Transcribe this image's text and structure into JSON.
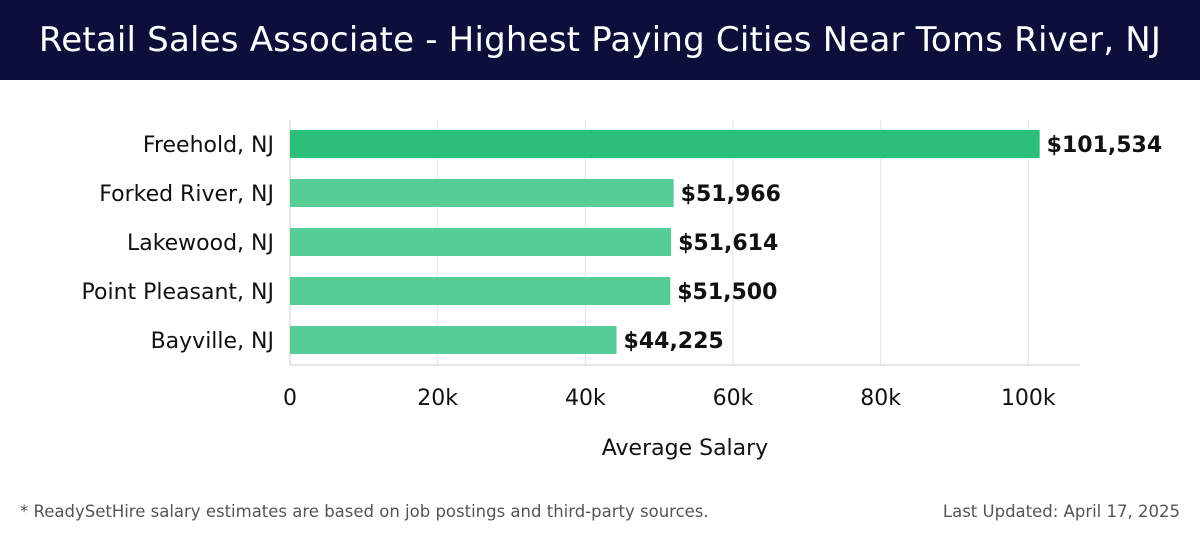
{
  "header": {
    "title": "Retail Sales Associate - Highest Paying Cities Near Toms River, NJ"
  },
  "footer": {
    "note": "* ReadySetHire salary estimates are based on job postings and third-party sources.",
    "updated": "Last Updated: April 17, 2025"
  },
  "chart_data": {
    "type": "bar",
    "orientation": "horizontal",
    "title": "Retail Sales Associate - Highest Paying Cities Near Toms River, NJ",
    "xlabel": "Average Salary",
    "ylabel": "",
    "categories": [
      "Freehold, NJ",
      "Forked River, NJ",
      "Lakewood, NJ",
      "Point Pleasant, NJ",
      "Bayville, NJ"
    ],
    "values": [
      101534,
      51966,
      51614,
      51500,
      44225
    ],
    "value_labels": [
      "$101,534",
      "$51,966",
      "$51,614",
      "$51,500",
      "$44,225"
    ],
    "xlim": [
      0,
      107000
    ],
    "xticks": [
      0,
      20000,
      40000,
      60000,
      80000,
      100000
    ],
    "xtick_labels": [
      "0",
      "20k",
      "40k",
      "60k",
      "80k",
      "100k"
    ],
    "grid": "vertical",
    "colors": {
      "top_bar": "#2cc07a",
      "bar": "#56cd95",
      "grid": "#e6e6e6",
      "axis": "#cccccc"
    }
  }
}
